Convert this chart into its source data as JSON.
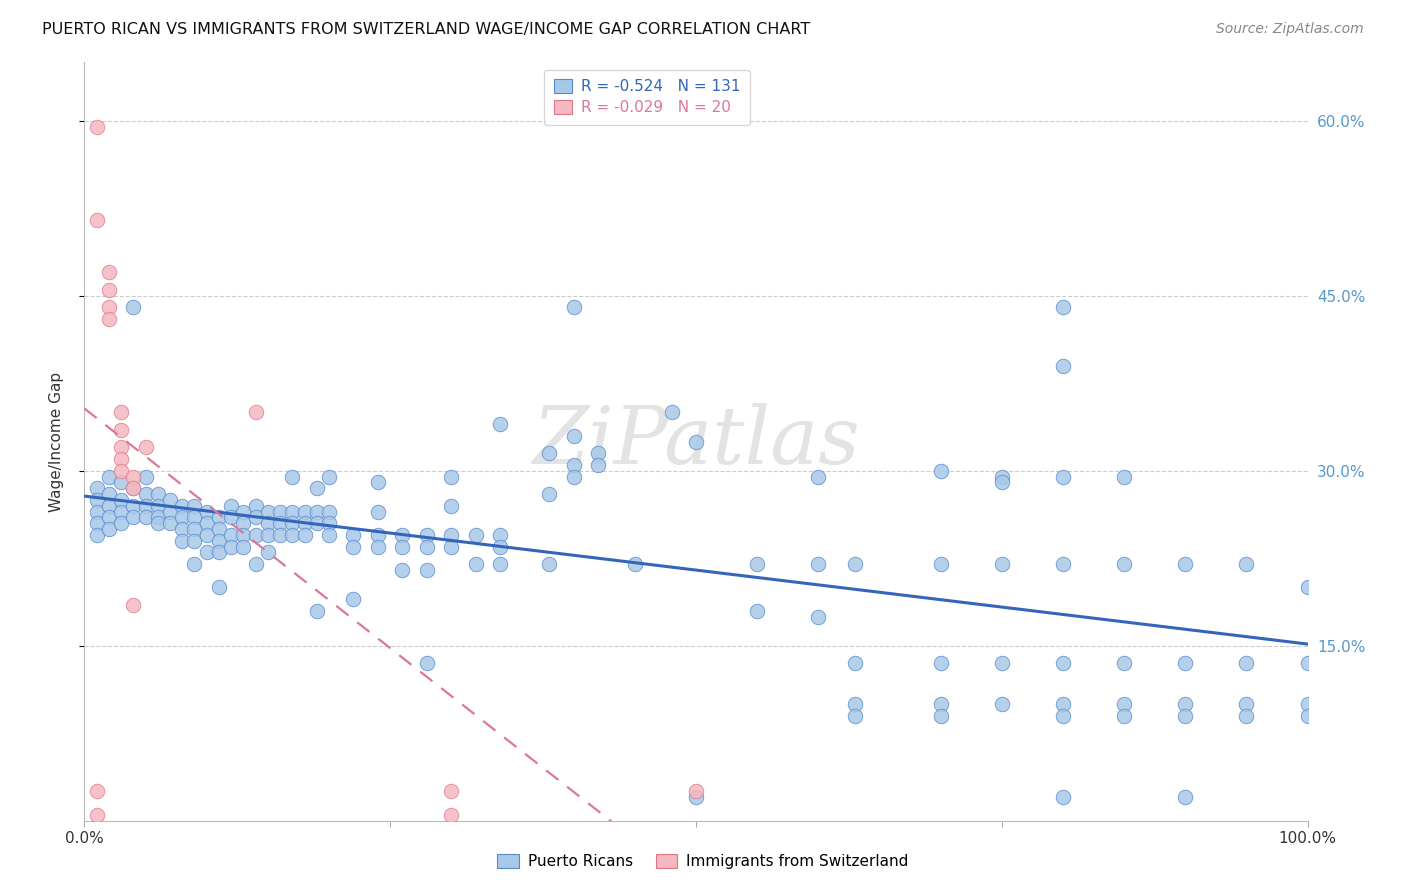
{
  "title": "PUERTO RICAN VS IMMIGRANTS FROM SWITZERLAND WAGE/INCOME GAP CORRELATION CHART",
  "source": "Source: ZipAtlas.com",
  "ylabel": "Wage/Income Gap",
  "xlim": [
    0,
    1
  ],
  "ylim": [
    0,
    0.65
  ],
  "xticks": [
    0.0,
    0.25,
    0.5,
    0.75,
    1.0
  ],
  "xticklabels": [
    "0.0%",
    "",
    "",
    "",
    "100.0%"
  ],
  "ytick_positions": [
    0.15,
    0.3,
    0.45,
    0.6
  ],
  "yticklabels": [
    "15.0%",
    "30.0%",
    "45.0%",
    "60.0%"
  ],
  "legend_label1": "Puerto Ricans",
  "legend_label2": "Immigrants from Switzerland",
  "watermark": "ZiPatlas",
  "blue_color": "#A8C8E8",
  "pink_color": "#F4B8C0",
  "blue_edge": "#5588CC",
  "pink_edge": "#DD7788",
  "trend_blue": "#3366BB",
  "trend_pink": "#DD7799",
  "blue_scatter": [
    [
      0.01,
      0.285
    ],
    [
      0.01,
      0.275
    ],
    [
      0.01,
      0.265
    ],
    [
      0.01,
      0.255
    ],
    [
      0.01,
      0.245
    ],
    [
      0.02,
      0.295
    ],
    [
      0.02,
      0.28
    ],
    [
      0.02,
      0.27
    ],
    [
      0.02,
      0.26
    ],
    [
      0.02,
      0.25
    ],
    [
      0.03,
      0.29
    ],
    [
      0.03,
      0.275
    ],
    [
      0.03,
      0.265
    ],
    [
      0.03,
      0.255
    ],
    [
      0.04,
      0.285
    ],
    [
      0.04,
      0.27
    ],
    [
      0.04,
      0.26
    ],
    [
      0.04,
      0.44
    ],
    [
      0.05,
      0.295
    ],
    [
      0.05,
      0.28
    ],
    [
      0.05,
      0.27
    ],
    [
      0.05,
      0.26
    ],
    [
      0.06,
      0.28
    ],
    [
      0.06,
      0.27
    ],
    [
      0.06,
      0.26
    ],
    [
      0.06,
      0.255
    ],
    [
      0.07,
      0.275
    ],
    [
      0.07,
      0.265
    ],
    [
      0.07,
      0.255
    ],
    [
      0.08,
      0.27
    ],
    [
      0.08,
      0.26
    ],
    [
      0.08,
      0.25
    ],
    [
      0.08,
      0.24
    ],
    [
      0.09,
      0.27
    ],
    [
      0.09,
      0.26
    ],
    [
      0.09,
      0.25
    ],
    [
      0.09,
      0.24
    ],
    [
      0.09,
      0.22
    ],
    [
      0.1,
      0.265
    ],
    [
      0.1,
      0.255
    ],
    [
      0.1,
      0.245
    ],
    [
      0.1,
      0.23
    ],
    [
      0.11,
      0.26
    ],
    [
      0.11,
      0.25
    ],
    [
      0.11,
      0.24
    ],
    [
      0.11,
      0.23
    ],
    [
      0.11,
      0.2
    ],
    [
      0.12,
      0.27
    ],
    [
      0.12,
      0.26
    ],
    [
      0.12,
      0.245
    ],
    [
      0.12,
      0.235
    ],
    [
      0.13,
      0.265
    ],
    [
      0.13,
      0.255
    ],
    [
      0.13,
      0.245
    ],
    [
      0.13,
      0.235
    ],
    [
      0.14,
      0.27
    ],
    [
      0.14,
      0.26
    ],
    [
      0.14,
      0.245
    ],
    [
      0.14,
      0.22
    ],
    [
      0.15,
      0.265
    ],
    [
      0.15,
      0.255
    ],
    [
      0.15,
      0.245
    ],
    [
      0.15,
      0.23
    ],
    [
      0.16,
      0.265
    ],
    [
      0.16,
      0.255
    ],
    [
      0.16,
      0.245
    ],
    [
      0.17,
      0.295
    ],
    [
      0.17,
      0.265
    ],
    [
      0.17,
      0.255
    ],
    [
      0.17,
      0.245
    ],
    [
      0.18,
      0.265
    ],
    [
      0.18,
      0.255
    ],
    [
      0.18,
      0.245
    ],
    [
      0.19,
      0.285
    ],
    [
      0.19,
      0.265
    ],
    [
      0.19,
      0.255
    ],
    [
      0.19,
      0.18
    ],
    [
      0.2,
      0.295
    ],
    [
      0.2,
      0.265
    ],
    [
      0.2,
      0.255
    ],
    [
      0.2,
      0.245
    ],
    [
      0.22,
      0.245
    ],
    [
      0.22,
      0.235
    ],
    [
      0.22,
      0.19
    ],
    [
      0.24,
      0.29
    ],
    [
      0.24,
      0.265
    ],
    [
      0.24,
      0.245
    ],
    [
      0.24,
      0.235
    ],
    [
      0.26,
      0.245
    ],
    [
      0.26,
      0.235
    ],
    [
      0.26,
      0.215
    ],
    [
      0.28,
      0.245
    ],
    [
      0.28,
      0.235
    ],
    [
      0.28,
      0.215
    ],
    [
      0.28,
      0.135
    ],
    [
      0.3,
      0.295
    ],
    [
      0.3,
      0.27
    ],
    [
      0.3,
      0.245
    ],
    [
      0.3,
      0.235
    ],
    [
      0.32,
      0.245
    ],
    [
      0.32,
      0.22
    ],
    [
      0.34,
      0.34
    ],
    [
      0.34,
      0.245
    ],
    [
      0.34,
      0.235
    ],
    [
      0.34,
      0.22
    ],
    [
      0.38,
      0.315
    ],
    [
      0.38,
      0.28
    ],
    [
      0.38,
      0.22
    ],
    [
      0.4,
      0.44
    ],
    [
      0.4,
      0.33
    ],
    [
      0.4,
      0.305
    ],
    [
      0.4,
      0.295
    ],
    [
      0.42,
      0.315
    ],
    [
      0.42,
      0.305
    ],
    [
      0.45,
      0.22
    ],
    [
      0.48,
      0.35
    ],
    [
      0.5,
      0.325
    ],
    [
      0.5,
      0.02
    ],
    [
      0.55,
      0.22
    ],
    [
      0.55,
      0.18
    ],
    [
      0.6,
      0.295
    ],
    [
      0.6,
      0.22
    ],
    [
      0.6,
      0.175
    ],
    [
      0.63,
      0.22
    ],
    [
      0.63,
      0.135
    ],
    [
      0.63,
      0.1
    ],
    [
      0.63,
      0.09
    ],
    [
      0.7,
      0.3
    ],
    [
      0.7,
      0.22
    ],
    [
      0.7,
      0.135
    ],
    [
      0.7,
      0.1
    ],
    [
      0.7,
      0.09
    ],
    [
      0.75,
      0.295
    ],
    [
      0.75,
      0.29
    ],
    [
      0.75,
      0.22
    ],
    [
      0.75,
      0.135
    ],
    [
      0.75,
      0.1
    ],
    [
      0.8,
      0.44
    ],
    [
      0.8,
      0.39
    ],
    [
      0.8,
      0.295
    ],
    [
      0.8,
      0.22
    ],
    [
      0.8,
      0.135
    ],
    [
      0.8,
      0.1
    ],
    [
      0.8,
      0.09
    ],
    [
      0.8,
      0.02
    ],
    [
      0.85,
      0.295
    ],
    [
      0.85,
      0.22
    ],
    [
      0.85,
      0.135
    ],
    [
      0.85,
      0.1
    ],
    [
      0.85,
      0.09
    ],
    [
      0.9,
      0.22
    ],
    [
      0.9,
      0.135
    ],
    [
      0.9,
      0.1
    ],
    [
      0.9,
      0.09
    ],
    [
      0.9,
      0.02
    ],
    [
      0.95,
      0.22
    ],
    [
      0.95,
      0.135
    ],
    [
      0.95,
      0.1
    ],
    [
      0.95,
      0.09
    ],
    [
      1.0,
      0.2
    ],
    [
      1.0,
      0.135
    ],
    [
      1.0,
      0.1
    ],
    [
      1.0,
      0.09
    ]
  ],
  "pink_scatter": [
    [
      0.01,
      0.595
    ],
    [
      0.01,
      0.515
    ],
    [
      0.02,
      0.47
    ],
    [
      0.02,
      0.455
    ],
    [
      0.02,
      0.44
    ],
    [
      0.02,
      0.43
    ],
    [
      0.03,
      0.35
    ],
    [
      0.03,
      0.335
    ],
    [
      0.03,
      0.32
    ],
    [
      0.03,
      0.31
    ],
    [
      0.03,
      0.3
    ],
    [
      0.04,
      0.295
    ],
    [
      0.04,
      0.285
    ],
    [
      0.05,
      0.32
    ],
    [
      0.14,
      0.35
    ],
    [
      0.04,
      0.185
    ],
    [
      0.3,
      0.025
    ],
    [
      0.3,
      0.005
    ],
    [
      0.5,
      0.025
    ],
    [
      0.01,
      0.025
    ],
    [
      0.01,
      0.005
    ]
  ]
}
